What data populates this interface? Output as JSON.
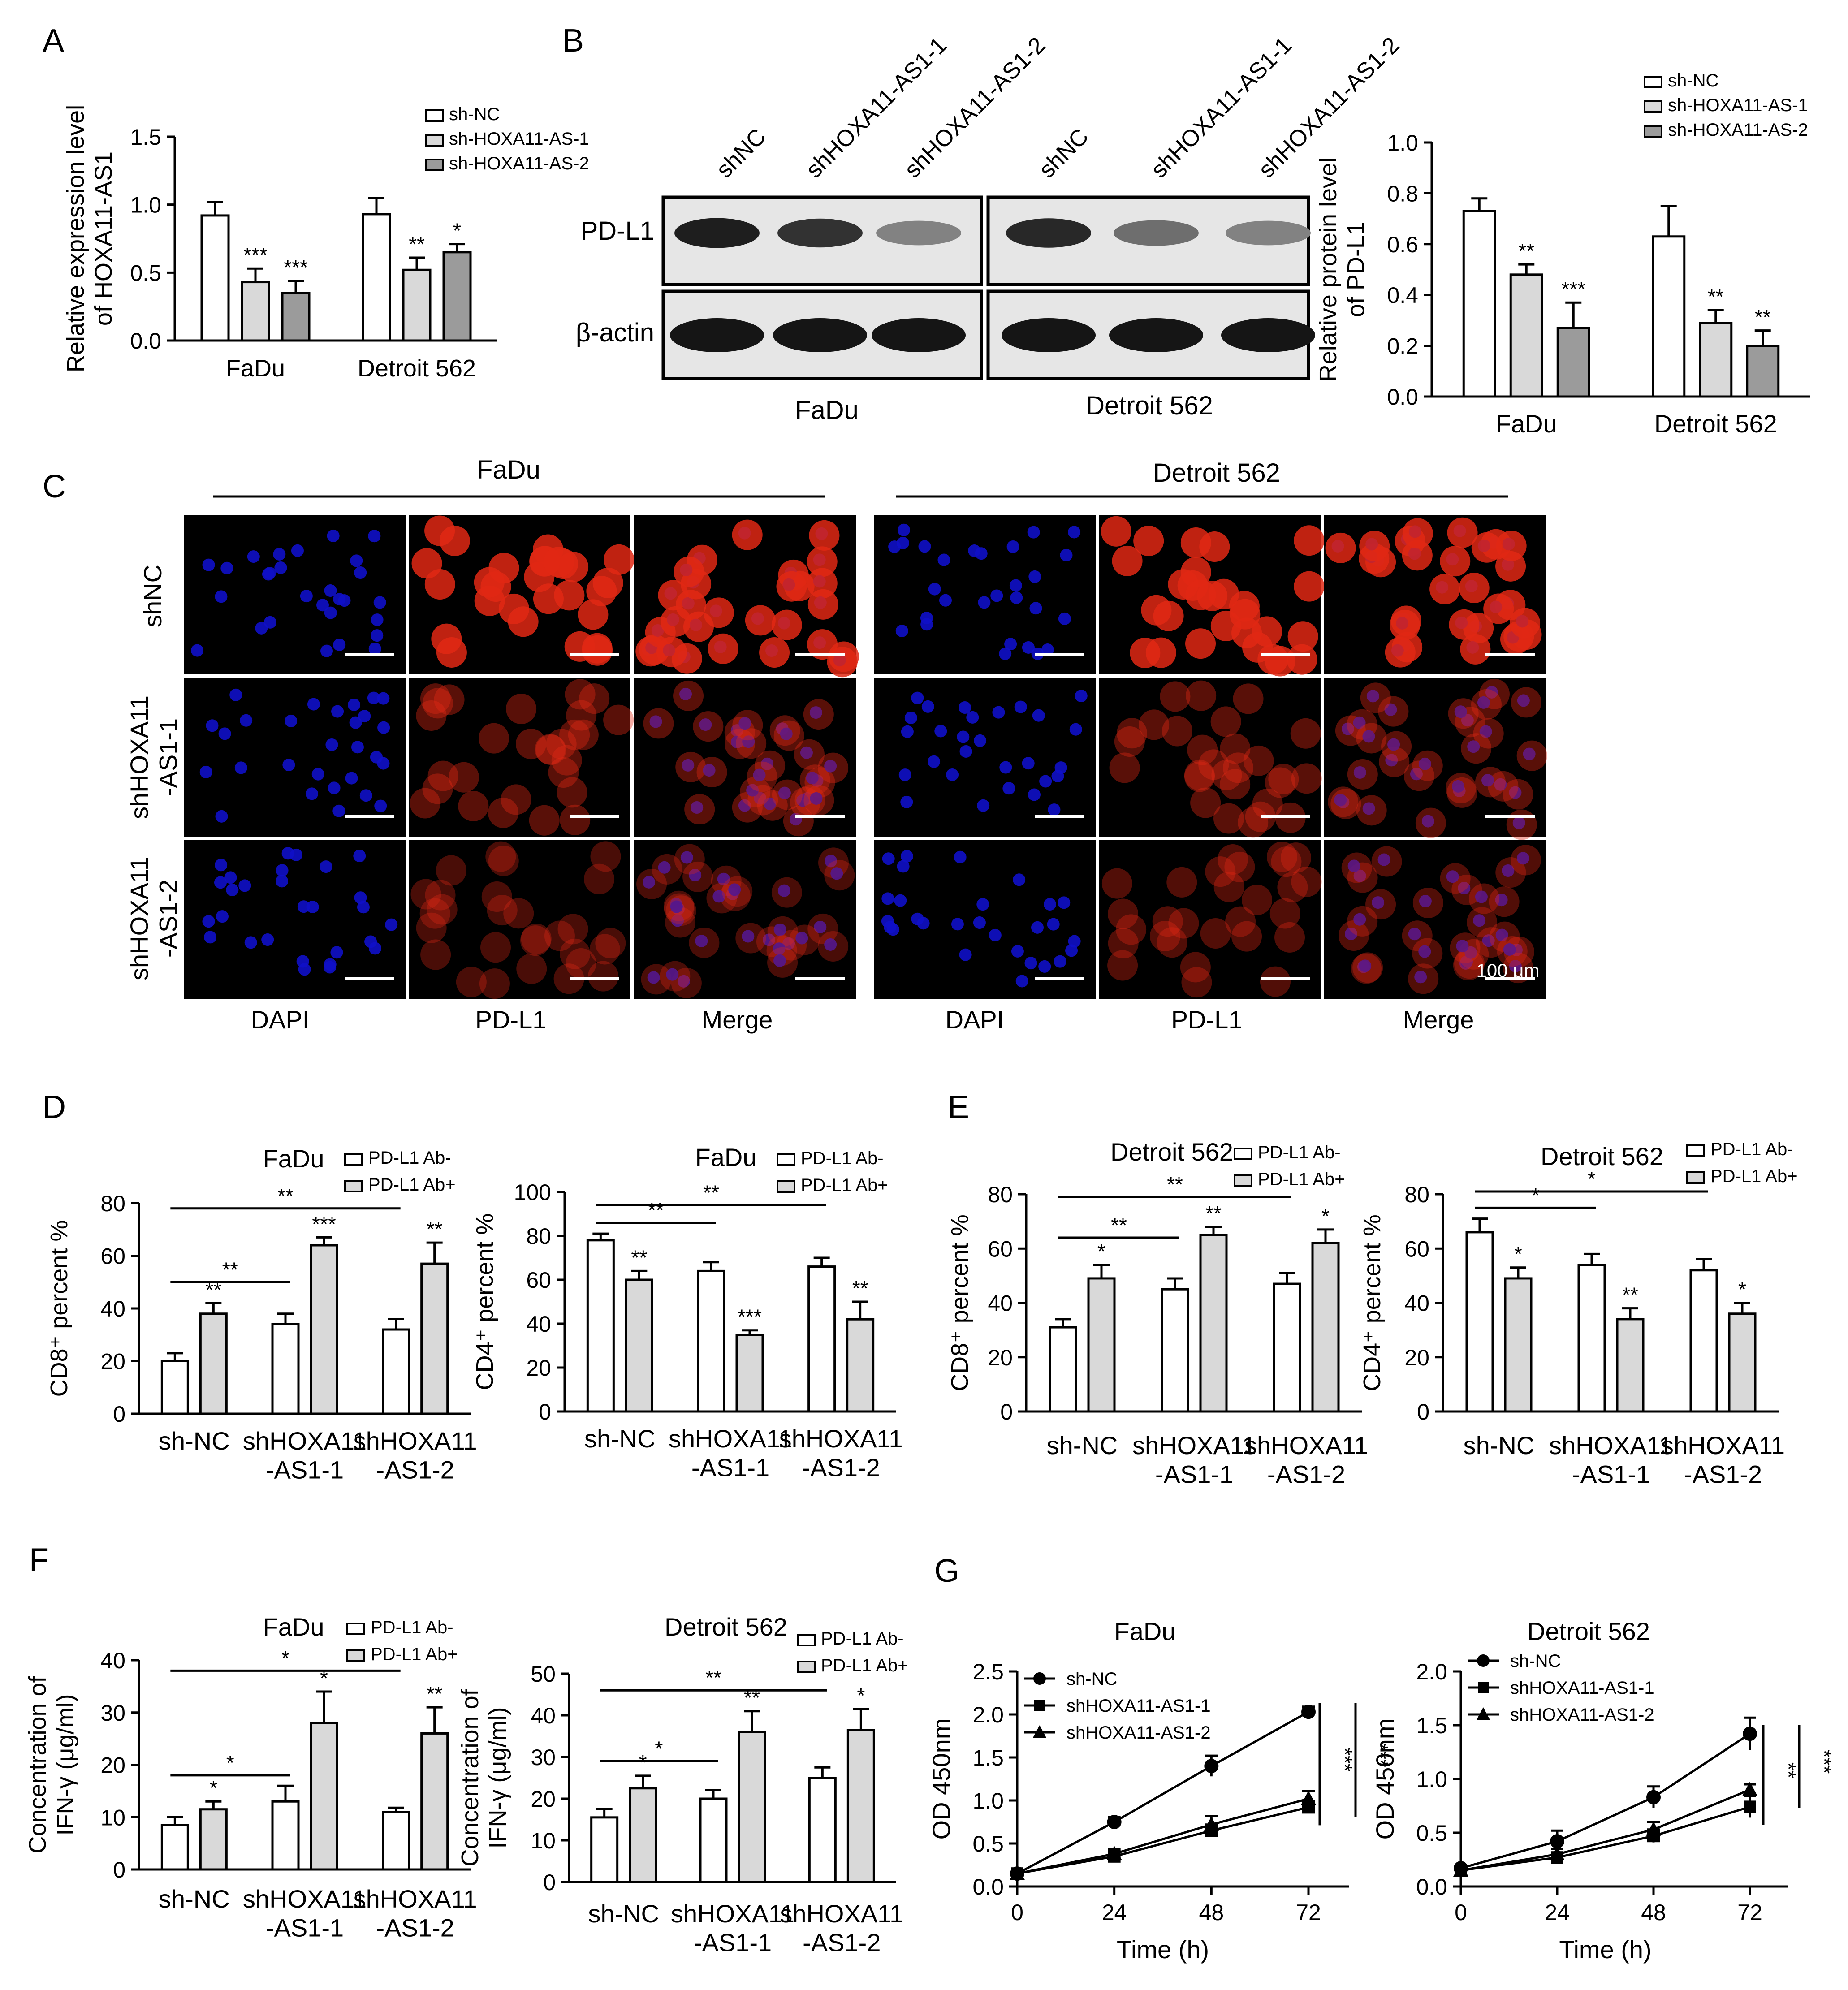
{
  "panel_letters": [
    "A",
    "B",
    "C",
    "D",
    "E",
    "F",
    "G"
  ],
  "shared_labels": {
    "three_group_legend": [
      "sh-NC",
      "sh-HOXA11-AS-1",
      "sh-HOXA11-AS-2"
    ],
    "ab_legend": [
      "PD-L1 Ab-",
      "PD-L1 Ab+"
    ],
    "shNC_labels": [
      "sh-NC",
      "shHOXA11\n-AS1-1",
      "shHOXA11\n-AS1-2"
    ]
  },
  "western": {
    "lane_labels": [
      "shNC",
      "shHOXA11-AS1-1",
      "shHOXA11-AS1-2",
      "shNC",
      "shHOXA11-AS1-1",
      "shHOXA11-AS1-2"
    ],
    "row_labels": [
      "PD-L1",
      "β-actin"
    ],
    "cell_lines": [
      "FaDu",
      "Detroit 562"
    ],
    "band_intensity": {
      "PD-L1": [
        0.95,
        0.85,
        0.45,
        0.9,
        0.55,
        0.45
      ],
      "β-actin": [
        1,
        1,
        1,
        1,
        1,
        1
      ]
    }
  },
  "if_panel": {
    "cell_lines": [
      "FaDu",
      "Detroit 562"
    ],
    "row_labels": [
      "shNC",
      "shHOXA11\n-AS1-1",
      "shHOXA11\n-AS1-2"
    ],
    "col_labels": [
      "DAPI",
      "PD-L1",
      "Merge",
      "DAPI",
      "PD-L1",
      "Merge"
    ],
    "scale_bar": "100 μm",
    "pd_l1_intensity": [
      [
        1,
        0.35,
        0.25
      ],
      [
        1,
        0.35,
        0.3
      ]
    ]
  },
  "chart_data": [
    {
      "id": "A",
      "type": "bar",
      "ylabel": "Relative expression level\nof HOXA11-AS1",
      "ylim": [
        0,
        1.5
      ],
      "yticks": [
        0.0,
        0.5,
        1.0,
        1.5
      ],
      "ytick_labels": [
        "0.0",
        "0.5",
        "1.0",
        "1.5"
      ],
      "groups": [
        "FaDu",
        "Detroit 562"
      ],
      "legend": [
        "sh-NC",
        "sh-HOXA11-AS-1",
        "sh-HOXA11-AS-2"
      ],
      "series": [
        {
          "name": "sh-NC",
          "values": [
            0.92,
            0.93
          ],
          "errors": [
            0.1,
            0.12
          ]
        },
        {
          "name": "sh-HOXA11-AS-1",
          "values": [
            0.43,
            0.52
          ],
          "errors": [
            0.1,
            0.09
          ]
        },
        {
          "name": "sh-HOXA11-AS-2",
          "values": [
            0.35,
            0.65
          ],
          "errors": [
            0.09,
            0.06
          ]
        }
      ],
      "stars": [
        [
          "",
          "***",
          "***"
        ],
        [
          "",
          "**",
          "*"
        ]
      ]
    },
    {
      "id": "B",
      "type": "bar",
      "ylabel": "Relative protein level\nof PD-L1",
      "ylim": [
        0,
        1.0
      ],
      "yticks": [
        0.0,
        0.2,
        0.4,
        0.6,
        0.8,
        1.0
      ],
      "ytick_labels": [
        "0.0",
        "0.2",
        "0.4",
        "0.6",
        "0.8",
        "1.0"
      ],
      "groups": [
        "FaDu",
        "Detroit 562"
      ],
      "legend": [
        "sh-NC",
        "sh-HOXA11-AS-1",
        "sh-HOXA11-AS-2"
      ],
      "series": [
        {
          "name": "sh-NC",
          "values": [
            0.73,
            0.63
          ],
          "errors": [
            0.05,
            0.12
          ]
        },
        {
          "name": "sh-HOXA11-AS-1",
          "values": [
            0.48,
            0.29
          ],
          "errors": [
            0.04,
            0.05
          ]
        },
        {
          "name": "sh-HOXA11-AS-2",
          "values": [
            0.27,
            0.2
          ],
          "errors": [
            0.1,
            0.06
          ]
        }
      ],
      "stars": [
        [
          "",
          "**",
          "***"
        ],
        [
          "",
          "**",
          "**"
        ]
      ]
    },
    {
      "id": "D1",
      "type": "bar",
      "title": "FaDu",
      "ylabel": "CD8⁺ percent %",
      "ylim": [
        0,
        80
      ],
      "yticks": [
        0,
        20,
        40,
        60,
        80
      ],
      "ytick_labels": [
        "0",
        "20",
        "40",
        "60",
        "80"
      ],
      "groups": [
        "sh-NC",
        "shHOXA11\n-AS1-1",
        "shHOXA11\n-AS1-2"
      ],
      "legend": [
        "PD-L1 Ab-",
        "PD-L1 Ab+"
      ],
      "series": [
        {
          "name": "PD-L1 Ab-",
          "values": [
            20,
            34,
            32
          ],
          "errors": [
            3,
            4,
            4
          ]
        },
        {
          "name": "PD-L1 Ab+",
          "values": [
            38,
            64,
            57
          ],
          "errors": [
            4,
            3,
            8
          ]
        }
      ],
      "stars": [
        [
          "",
          "**"
        ],
        [
          "",
          "***"
        ],
        [
          "",
          "**"
        ]
      ],
      "brackets": [
        {
          "from": 0,
          "to": 1,
          "y": 50,
          "label": "**"
        },
        {
          "from": 0,
          "to": 2,
          "y": 78,
          "label": "**"
        }
      ]
    },
    {
      "id": "D2",
      "type": "bar",
      "title": "FaDu",
      "ylabel": "CD4⁺ percent %",
      "ylim": [
        0,
        100
      ],
      "yticks": [
        0,
        20,
        40,
        60,
        80,
        100
      ],
      "ytick_labels": [
        "0",
        "20",
        "40",
        "60",
        "80",
        "100"
      ],
      "groups": [
        "sh-NC",
        "shHOXA11\n-AS1-1",
        "shHOXA11\n-AS1-2"
      ],
      "legend": [
        "PD-L1 Ab-",
        "PD-L1 Ab+"
      ],
      "series": [
        {
          "name": "PD-L1 Ab-",
          "values": [
            78,
            64,
            66
          ],
          "errors": [
            3,
            4,
            4
          ]
        },
        {
          "name": "PD-L1 Ab+",
          "values": [
            60,
            35,
            42
          ],
          "errors": [
            4,
            2,
            8
          ]
        }
      ],
      "stars": [
        [
          "",
          "**"
        ],
        [
          "",
          "***"
        ],
        [
          "",
          "**"
        ]
      ],
      "brackets": [
        {
          "from": 0,
          "to": 1,
          "y": 86,
          "label": "**"
        },
        {
          "from": 0,
          "to": 2,
          "y": 94,
          "label": "**"
        }
      ]
    },
    {
      "id": "E1",
      "type": "bar",
      "title": "Detroit 562",
      "ylabel": "CD8⁺ percent %",
      "ylim": [
        0,
        80
      ],
      "yticks": [
        0,
        20,
        40,
        60,
        80
      ],
      "ytick_labels": [
        "0",
        "20",
        "40",
        "60",
        "80"
      ],
      "groups": [
        "sh-NC",
        "shHOXA11\n-AS1-1",
        "shHOXA11\n-AS1-2"
      ],
      "legend": [
        "PD-L1 Ab-",
        "PD-L1 Ab+"
      ],
      "series": [
        {
          "name": "PD-L1 Ab-",
          "values": [
            31,
            45,
            47
          ],
          "errors": [
            3,
            4,
            4
          ]
        },
        {
          "name": "PD-L1 Ab+",
          "values": [
            49,
            65,
            62
          ],
          "errors": [
            5,
            3,
            5
          ]
        }
      ],
      "stars": [
        [
          "",
          "*"
        ],
        [
          "",
          "**"
        ],
        [
          "",
          "*"
        ]
      ],
      "brackets": [
        {
          "from": 0,
          "to": 1,
          "y": 64,
          "label": "**"
        },
        {
          "from": 0,
          "to": 2,
          "y": 79,
          "label": "**"
        }
      ]
    },
    {
      "id": "E2",
      "type": "bar",
      "title": "Detroit 562",
      "ylabel": "CD4⁺ percent %",
      "ylim": [
        0,
        80
      ],
      "yticks": [
        0,
        20,
        40,
        60,
        80
      ],
      "ytick_labels": [
        "0",
        "20",
        "40",
        "60",
        "80"
      ],
      "groups": [
        "sh-NC",
        "shHOXA11\n-AS1-1",
        "shHOXA11\n-AS1-2"
      ],
      "legend": [
        "PD-L1 Ab-",
        "PD-L1 Ab+"
      ],
      "series": [
        {
          "name": "PD-L1 Ab-",
          "values": [
            66,
            54,
            52
          ],
          "errors": [
            5,
            4,
            4
          ]
        },
        {
          "name": "PD-L1 Ab+",
          "values": [
            49,
            34,
            36
          ],
          "errors": [
            4,
            4,
            4
          ]
        }
      ],
      "stars": [
        [
          "",
          "*"
        ],
        [
          "",
          "**"
        ],
        [
          "",
          "*"
        ]
      ],
      "brackets": [
        {
          "from": 0,
          "to": 1,
          "y": 75,
          "label": "*"
        },
        {
          "from": 0,
          "to": 2,
          "y": 81,
          "label": "*"
        }
      ]
    },
    {
      "id": "F1",
      "type": "bar",
      "title": "FaDu",
      "ylabel": "Concentration of\nIFN-γ (μg/ml)",
      "ylim": [
        0,
        40
      ],
      "yticks": [
        0,
        10,
        20,
        30,
        40
      ],
      "ytick_labels": [
        "0",
        "10",
        "20",
        "30",
        "40"
      ],
      "groups": [
        "sh-NC",
        "shHOXA11\n-AS1-1",
        "shHOXA11\n-AS1-2"
      ],
      "legend": [
        "PD-L1 Ab-",
        "PD-L1 Ab+"
      ],
      "series": [
        {
          "name": "PD-L1 Ab-",
          "values": [
            8.5,
            13,
            11
          ],
          "errors": [
            1.5,
            3,
            0.8
          ]
        },
        {
          "name": "PD-L1 Ab+",
          "values": [
            11.5,
            28,
            26
          ],
          "errors": [
            1.5,
            6,
            5
          ]
        }
      ],
      "stars": [
        [
          "",
          "*"
        ],
        [
          "",
          "*"
        ],
        [
          "",
          "**"
        ]
      ],
      "brackets": [
        {
          "from": 0,
          "to": 1,
          "y": 18,
          "label": "*"
        },
        {
          "from": 0,
          "to": 2,
          "y": 38,
          "label": "*"
        }
      ]
    },
    {
      "id": "F2",
      "type": "bar",
      "title": "Detroit 562",
      "ylabel": "Concentration of\nIFN-γ (μg/ml)",
      "ylim": [
        0,
        50
      ],
      "yticks": [
        0,
        10,
        20,
        30,
        40,
        50
      ],
      "ytick_labels": [
        "0",
        "10",
        "20",
        "30",
        "40",
        "50"
      ],
      "groups": [
        "sh-NC",
        "shHOXA11\n-AS1-1",
        "shHOXA11\n-AS1-2"
      ],
      "legend": [
        "PD-L1 Ab-",
        "PD-L1 Ab+"
      ],
      "series": [
        {
          "name": "PD-L1 Ab-",
          "values": [
            15.5,
            20,
            25
          ],
          "errors": [
            2,
            2,
            2.5
          ]
        },
        {
          "name": "PD-L1 Ab+",
          "values": [
            22.5,
            36,
            36.5
          ],
          "errors": [
            3,
            5,
            5
          ]
        }
      ],
      "stars": [
        [
          "",
          "*"
        ],
        [
          "",
          "**"
        ],
        [
          "",
          "*"
        ]
      ],
      "brackets": [
        {
          "from": 0,
          "to": 1,
          "y": 29,
          "label": "*"
        },
        {
          "from": 0,
          "to": 2,
          "y": 46,
          "label": "**"
        }
      ]
    },
    {
      "id": "G1",
      "type": "line",
      "title": "FaDu",
      "ylabel": "OD 450nm",
      "xlabel": "Time (h)",
      "ylim": [
        0,
        2.5
      ],
      "xlim": [
        0,
        72
      ],
      "yticks": [
        0.0,
        0.5,
        1.0,
        1.5,
        2.0,
        2.5
      ],
      "ytick_labels": [
        "0.0",
        "0.5",
        "1.0",
        "1.5",
        "2.0",
        "2.5"
      ],
      "xticks": [
        0,
        24,
        48,
        72
      ],
      "xtick_labels": [
        "0",
        "24",
        "48",
        "72"
      ],
      "x": [
        0,
        24,
        48,
        72
      ],
      "series": [
        {
          "name": "sh-NC",
          "values": [
            0.15,
            0.75,
            1.4,
            2.03
          ],
          "errors": [
            0.03,
            0.06,
            0.12,
            0.06
          ],
          "marker": "circle"
        },
        {
          "name": "shHOXA11-AS1-1",
          "values": [
            0.15,
            0.35,
            0.65,
            0.92
          ],
          "errors": [
            0.03,
            0.05,
            0.07,
            0.07
          ],
          "marker": "square"
        },
        {
          "name": "shHOXA11-AS1-2",
          "values": [
            0.15,
            0.38,
            0.72,
            1.02
          ],
          "errors": [
            0.03,
            0.05,
            0.1,
            0.09
          ],
          "marker": "triangle"
        }
      ],
      "side_stars": [
        "***",
        "***"
      ]
    },
    {
      "id": "G2",
      "type": "line",
      "title": "Detroit 562",
      "ylabel": "OD 450nm",
      "xlabel": "Time (h)",
      "ylim": [
        0,
        2.0
      ],
      "xlim": [
        0,
        72
      ],
      "yticks": [
        0.0,
        0.5,
        1.0,
        1.5,
        2.0
      ],
      "ytick_labels": [
        "0.0",
        "0.5",
        "1.0",
        "1.5",
        "2.0"
      ],
      "xticks": [
        0,
        24,
        48,
        72
      ],
      "xtick_labels": [
        "0",
        "24",
        "48",
        "72"
      ],
      "x": [
        0,
        24,
        48,
        72
      ],
      "series": [
        {
          "name": "sh-NC",
          "values": [
            0.17,
            0.42,
            0.83,
            1.42
          ],
          "errors": [
            0.03,
            0.1,
            0.1,
            0.15
          ],
          "marker": "circle"
        },
        {
          "name": "shHOXA11-AS1-1",
          "values": [
            0.15,
            0.27,
            0.47,
            0.74
          ],
          "errors": [
            0.03,
            0.04,
            0.06,
            0.1
          ],
          "marker": "square"
        },
        {
          "name": "shHOXA11-AS1-2",
          "values": [
            0.15,
            0.3,
            0.53,
            0.9
          ],
          "errors": [
            0.03,
            0.05,
            0.07,
            0.05
          ],
          "marker": "triangle"
        }
      ],
      "side_stars": [
        "**",
        "***"
      ]
    }
  ]
}
